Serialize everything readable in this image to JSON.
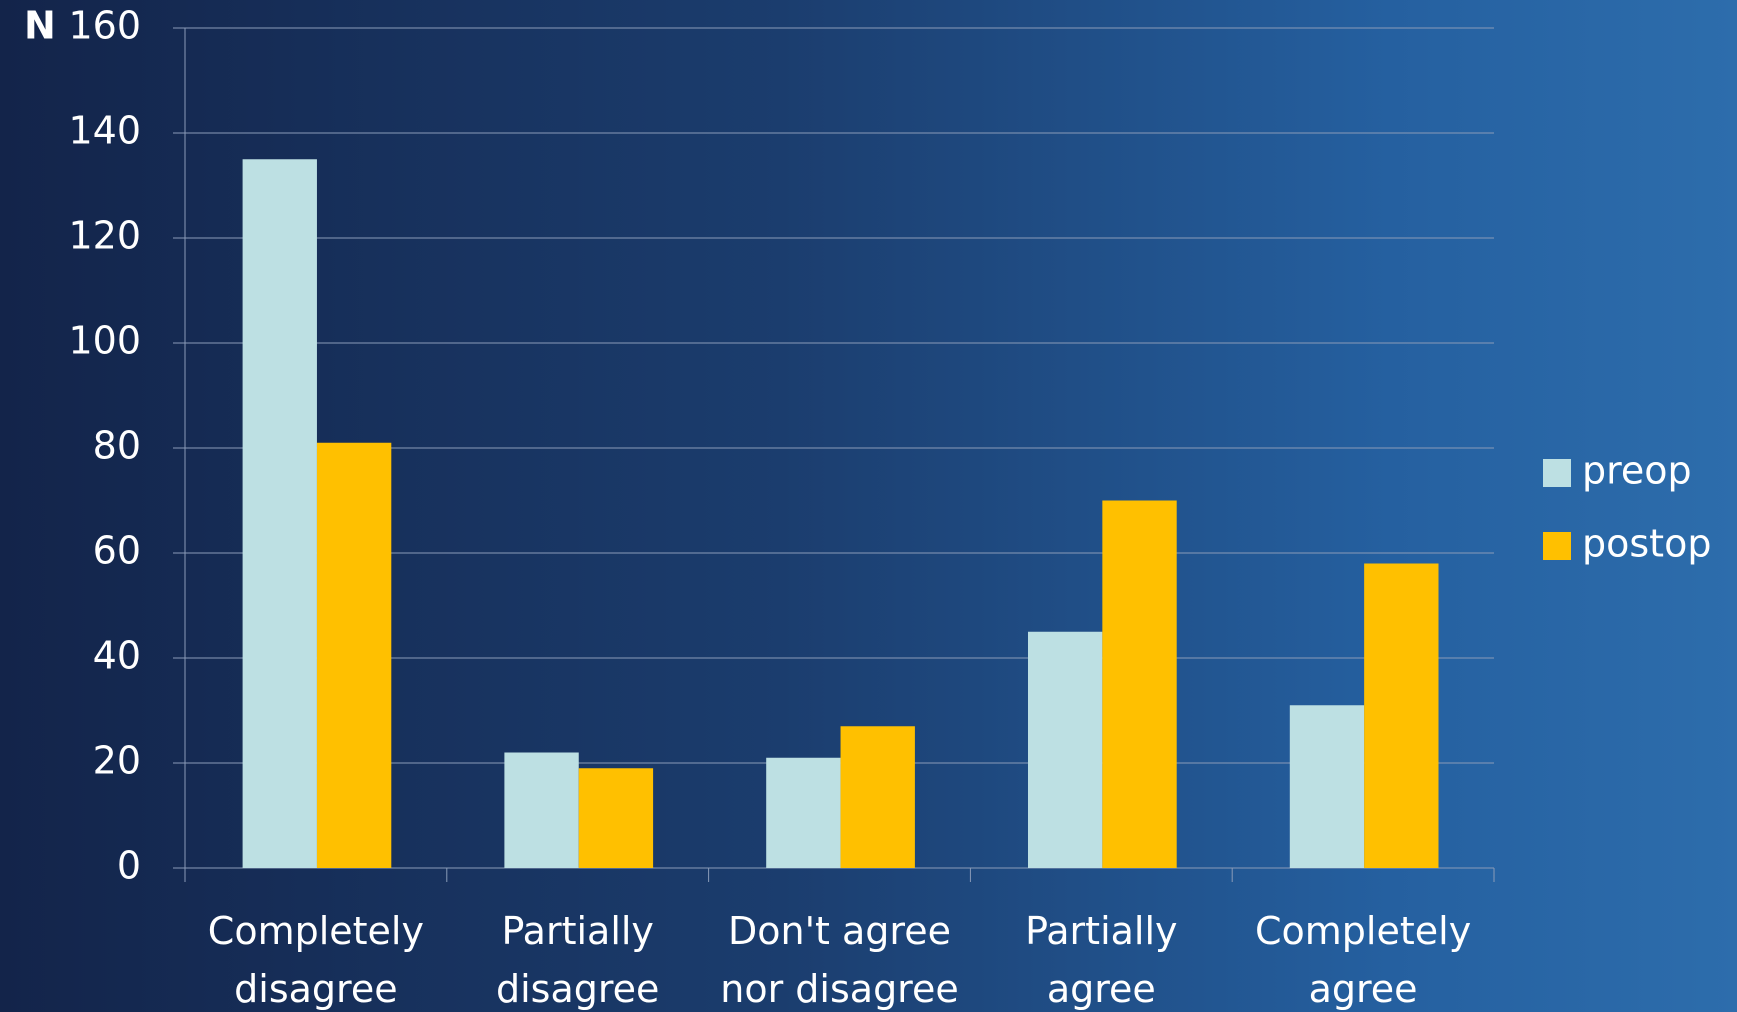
{
  "chart_data": {
    "type": "bar",
    "y_label": "N",
    "categories": [
      "Completely\ndisagree",
      "Partially\ndisagree",
      "Don't agree\nnor disagree",
      "Partially\nagree",
      "Completely\nagree"
    ],
    "series": [
      {
        "name": "preop",
        "color": "#bde0e3",
        "values": [
          135,
          22,
          21,
          45,
          31
        ]
      },
      {
        "name": "postop",
        "color": "#ffc000",
        "values": [
          81,
          19,
          27,
          70,
          58
        ]
      }
    ],
    "ylim": [
      0,
      160
    ],
    "yticks": [
      0,
      20,
      40,
      60,
      80,
      100,
      120,
      140,
      160
    ],
    "grid": true,
    "legend": "right"
  }
}
